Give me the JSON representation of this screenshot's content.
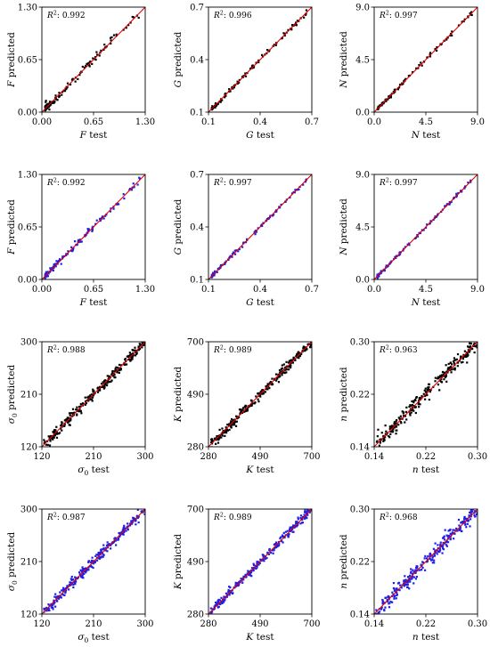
{
  "chart_data": [
    {
      "type": "scatter",
      "row": 0,
      "col": 0,
      "r2": "0.992",
      "xlabel": "test",
      "ylabel": "predicted",
      "var": "F",
      "sub": "",
      "xlim": [
        0,
        1.3
      ],
      "ylim": [
        0,
        1.3
      ],
      "ticks": [
        "0.00",
        "0.65",
        "1.30"
      ],
      "tickv": [
        0,
        0.65,
        1.3
      ],
      "color": "#000000",
      "seed": 11,
      "n": 110,
      "dist": "skew",
      "noise": 0.025
    },
    {
      "type": "scatter",
      "row": 0,
      "col": 1,
      "r2": "0.996",
      "xlabel": "test",
      "ylabel": "predicted",
      "var": "G",
      "sub": "",
      "xlim": [
        0.1,
        0.7
      ],
      "ylim": [
        0.1,
        0.7
      ],
      "ticks": [
        "0.1",
        "0.4",
        "0.7"
      ],
      "tickv": [
        0.1,
        0.4,
        0.7
      ],
      "color": "#000000",
      "seed": 23,
      "n": 110,
      "dist": "skew",
      "noise": 0.006
    },
    {
      "type": "scatter",
      "row": 0,
      "col": 2,
      "r2": "0.997",
      "xlabel": "test",
      "ylabel": "predicted",
      "var": "N",
      "sub": "",
      "xlim": [
        0,
        9
      ],
      "ylim": [
        0,
        9
      ],
      "ticks": [
        "0.0",
        "4.5",
        "9.0"
      ],
      "tickv": [
        0,
        4.5,
        9
      ],
      "color": "#000000",
      "seed": 37,
      "n": 110,
      "dist": "skew",
      "noise": 0.08
    },
    {
      "type": "scatter",
      "row": 1,
      "col": 0,
      "r2": "0.992",
      "xlabel": "test",
      "ylabel": "predicted",
      "var": "F",
      "sub": "",
      "xlim": [
        0,
        1.3
      ],
      "ylim": [
        0,
        1.3
      ],
      "ticks": [
        "0.00",
        "0.65",
        "1.30"
      ],
      "tickv": [
        0,
        0.65,
        1.3
      ],
      "color": "#1f1fe6",
      "seed": 41,
      "n": 110,
      "dist": "skew",
      "noise": 0.022
    },
    {
      "type": "scatter",
      "row": 1,
      "col": 1,
      "r2": "0.997",
      "xlabel": "test",
      "ylabel": "predicted",
      "var": "G",
      "sub": "",
      "xlim": [
        0.1,
        0.7
      ],
      "ylim": [
        0.1,
        0.7
      ],
      "ticks": [
        "0.1",
        "0.4",
        "0.7"
      ],
      "tickv": [
        0.1,
        0.4,
        0.7
      ],
      "color": "#1f1fe6",
      "seed": 53,
      "n": 110,
      "dist": "skew",
      "noise": 0.005
    },
    {
      "type": "scatter",
      "row": 1,
      "col": 2,
      "r2": "0.997",
      "xlabel": "test",
      "ylabel": "predicted",
      "var": "N",
      "sub": "",
      "xlim": [
        0,
        9
      ],
      "ylim": [
        0,
        9
      ],
      "ticks": [
        "0.0",
        "4.5",
        "9.0"
      ],
      "tickv": [
        0,
        4.5,
        9
      ],
      "color": "#1f1fe6",
      "seed": 67,
      "n": 110,
      "dist": "skew",
      "noise": 0.07
    },
    {
      "type": "scatter",
      "row": 2,
      "col": 0,
      "r2": "0.988",
      "xlabel": "test",
      "ylabel": "predicted",
      "var": "σ",
      "sub": "0",
      "xlim": [
        120,
        300
      ],
      "ylim": [
        120,
        300
      ],
      "ticks": [
        "120",
        "210",
        "300"
      ],
      "tickv": [
        120,
        210,
        300
      ],
      "color": "#000000",
      "seed": 71,
      "n": 260,
      "dist": "uniform",
      "noise": 4.5
    },
    {
      "type": "scatter",
      "row": 2,
      "col": 1,
      "r2": "0.989",
      "xlabel": "test",
      "ylabel": "predicted",
      "var": "K",
      "sub": "",
      "xlim": [
        280,
        700
      ],
      "ylim": [
        280,
        700
      ],
      "ticks": [
        "280",
        "490",
        "700"
      ],
      "tickv": [
        280,
        490,
        700
      ],
      "color": "#000000",
      "seed": 83,
      "n": 260,
      "dist": "uniform",
      "noise": 9
    },
    {
      "type": "scatter",
      "row": 2,
      "col": 2,
      "r2": "0.963",
      "xlabel": "test",
      "ylabel": "predicted",
      "var": "n",
      "sub": "",
      "xlim": [
        0.14,
        0.3
      ],
      "ylim": [
        0.14,
        0.3
      ],
      "ticks": [
        "0.14",
        "0.22",
        "0.30"
      ],
      "tickv": [
        0.14,
        0.22,
        0.3
      ],
      "color": "#000000",
      "seed": 97,
      "n": 260,
      "dist": "uniform",
      "noise": 0.0065
    },
    {
      "type": "scatter",
      "row": 3,
      "col": 0,
      "r2": "0.987",
      "xlabel": "test",
      "ylabel": "predicted",
      "var": "σ",
      "sub": "0",
      "xlim": [
        120,
        300
      ],
      "ylim": [
        120,
        300
      ],
      "ticks": [
        "120",
        "210",
        "300"
      ],
      "tickv": [
        120,
        210,
        300
      ],
      "color": "#1f1fe6",
      "seed": 101,
      "n": 260,
      "dist": "uniform",
      "noise": 4.5
    },
    {
      "type": "scatter",
      "row": 3,
      "col": 1,
      "r2": "0.989",
      "xlabel": "test",
      "ylabel": "predicted",
      "var": "K",
      "sub": "",
      "xlim": [
        280,
        700
      ],
      "ylim": [
        280,
        700
      ],
      "ticks": [
        "280",
        "490",
        "700"
      ],
      "tickv": [
        280,
        490,
        700
      ],
      "color": "#1f1fe6",
      "seed": 113,
      "n": 260,
      "dist": "uniform",
      "noise": 9
    },
    {
      "type": "scatter",
      "row": 3,
      "col": 2,
      "r2": "0.968",
      "xlabel": "test",
      "ylabel": "predicted",
      "var": "n",
      "sub": "",
      "xlim": [
        0.14,
        0.3
      ],
      "ylim": [
        0.14,
        0.3
      ],
      "ticks": [
        "0.14",
        "0.22",
        "0.30"
      ],
      "tickv": [
        0.14,
        0.22,
        0.3
      ],
      "color": "#1f1fe6",
      "seed": 127,
      "n": 260,
      "dist": "uniform",
      "noise": 0.006
    }
  ],
  "r2_prefix": "R",
  "r2_exp": "2",
  "r2_sep": ": ",
  "line_color": "#e00000",
  "marker_shape": "square"
}
